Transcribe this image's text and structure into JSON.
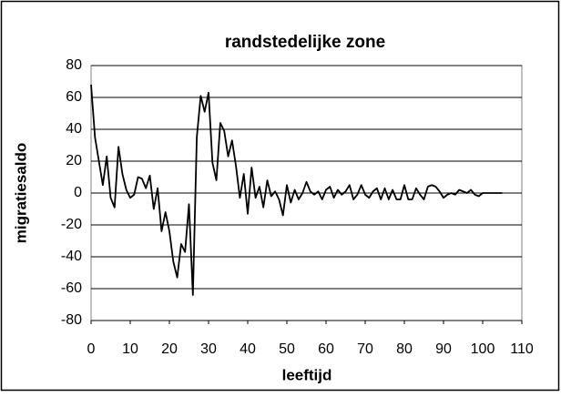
{
  "chart_data": {
    "type": "line",
    "title": "randstedelijke zone",
    "x_label": "leeftijd",
    "y_label": "migratiesaldo",
    "x": [
      0,
      1,
      2,
      3,
      4,
      5,
      6,
      7,
      8,
      9,
      10,
      11,
      12,
      13,
      14,
      15,
      16,
      17,
      18,
      19,
      20,
      21,
      22,
      23,
      24,
      25,
      26,
      27,
      28,
      29,
      30,
      31,
      32,
      33,
      34,
      35,
      36,
      37,
      38,
      39,
      40,
      41,
      42,
      43,
      44,
      45,
      46,
      47,
      48,
      49,
      50,
      51,
      52,
      53,
      54,
      55,
      56,
      57,
      58,
      59,
      60,
      61,
      62,
      63,
      64,
      65,
      66,
      67,
      68,
      69,
      70,
      71,
      72,
      73,
      74,
      75,
      76,
      77,
      78,
      79,
      80,
      81,
      82,
      83,
      84,
      85,
      86,
      87,
      88,
      89,
      90,
      91,
      92,
      93,
      94,
      95,
      96,
      97,
      98,
      99,
      100,
      101,
      102,
      103,
      104,
      105
    ],
    "series": [
      {
        "name": "migratiesaldo",
        "color": "#000000",
        "values": [
          68,
          35,
          20,
          5,
          23,
          -3,
          -9,
          29,
          12,
          2,
          -3,
          -1,
          10,
          9,
          3,
          11,
          -10,
          3,
          -24,
          -12,
          -24,
          -43,
          -53,
          -32,
          -37,
          -7,
          -64,
          35,
          61,
          51,
          63,
          19,
          8,
          44,
          39,
          23,
          33,
          17,
          -3,
          12,
          -13,
          16,
          -3,
          4,
          -9,
          8,
          -2,
          1,
          -4,
          -14,
          5,
          -6,
          2,
          -4,
          0,
          7,
          1,
          -1,
          1,
          -4,
          2,
          4,
          -3,
          2,
          -1,
          1,
          5,
          -4,
          -1,
          5,
          -1,
          -3,
          1,
          3,
          -4,
          3,
          -4,
          2,
          -4,
          -4,
          5,
          -4,
          -4,
          3,
          -1,
          -4,
          4,
          5,
          4,
          1,
          -3,
          -1,
          0,
          -1,
          2,
          1,
          0,
          2,
          -1,
          -2,
          0,
          0,
          0,
          0,
          0,
          0
        ]
      }
    ],
    "xlim": [
      0,
      110
    ],
    "xticks": [
      0,
      10,
      20,
      30,
      40,
      50,
      60,
      70,
      80,
      90,
      100,
      110
    ],
    "ylim": [
      -80,
      80
    ],
    "yticks": [
      -80,
      -60,
      -40,
      -20,
      0,
      20,
      40,
      60,
      80
    ],
    "grid": true
  }
}
